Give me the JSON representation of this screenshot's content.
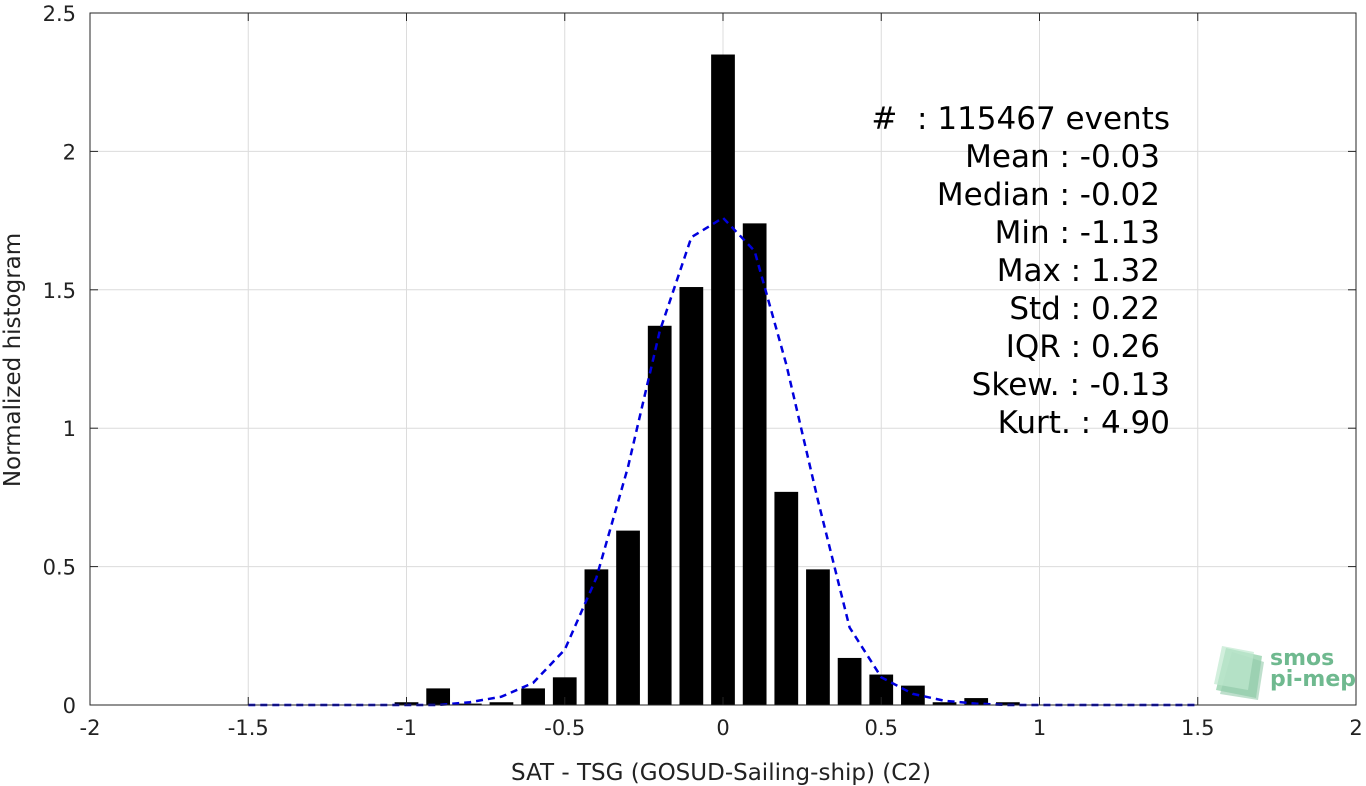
{
  "chart_data": {
    "type": "bar",
    "xlabel": "SAT - TSG (GOSUD-Sailing-ship) (C2)",
    "ylabel": "Normalized histogram",
    "xlim": [
      -2,
      2
    ],
    "ylim": [
      0,
      2.5
    ],
    "grid": true,
    "x_ticks": [
      -2,
      -1.5,
      -1,
      -0.5,
      0,
      0.5,
      1,
      1.5,
      2
    ],
    "x_tick_labels": [
      "-2",
      "-1.5",
      "-1",
      "-0.5",
      "0",
      "0.5",
      "1",
      "1.5",
      "2"
    ],
    "y_ticks": [
      0,
      0.5,
      1,
      1.5,
      2,
      2.5
    ],
    "y_tick_labels": [
      "0",
      "0.5",
      "1",
      "1.5",
      "2",
      "2.5"
    ],
    "bars": {
      "x": [
        -1.0,
        -0.9,
        -0.8,
        -0.7,
        -0.6,
        -0.5,
        -0.4,
        -0.3,
        -0.2,
        -0.1,
        0.0,
        0.1,
        0.2,
        0.3,
        0.4,
        0.5,
        0.6,
        0.7,
        0.8,
        0.9
      ],
      "values": [
        0.01,
        0.06,
        0.005,
        0.01,
        0.06,
        0.1,
        0.49,
        0.63,
        1.37,
        1.51,
        2.35,
        1.74,
        0.77,
        0.49,
        0.17,
        0.11,
        0.07,
        0.01,
        0.025,
        0.01
      ],
      "color": "#000000"
    },
    "fit_curve": {
      "style": "dashed",
      "color": "#0000dd",
      "x": [
        -1.5,
        -1.2,
        -1.0,
        -0.9,
        -0.8,
        -0.7,
        -0.6,
        -0.5,
        -0.4,
        -0.3,
        -0.2,
        -0.1,
        0.0,
        0.1,
        0.2,
        0.3,
        0.4,
        0.5,
        0.6,
        0.7,
        0.8,
        0.9,
        1.0,
        1.2,
        1.5
      ],
      "y": [
        0.0,
        0.0,
        0.0,
        0.0,
        0.01,
        0.03,
        0.08,
        0.2,
        0.46,
        0.86,
        1.35,
        1.69,
        1.76,
        1.64,
        1.23,
        0.74,
        0.28,
        0.1,
        0.04,
        0.015,
        0.005,
        0.0,
        0.0,
        0.0,
        0.0
      ]
    },
    "annotations": [
      "#  : 115467 events",
      "Mean : -0.03",
      "Median : -0.02",
      "Min : -1.13",
      "Max : 1.32",
      "Std : 0.22",
      "IQR : 0.26",
      "Skew. : -0.13",
      "Kurt. : 4.90"
    ]
  },
  "logo": {
    "line1": "smos",
    "line2": "pi-mep",
    "color": "#6fb98f"
  }
}
